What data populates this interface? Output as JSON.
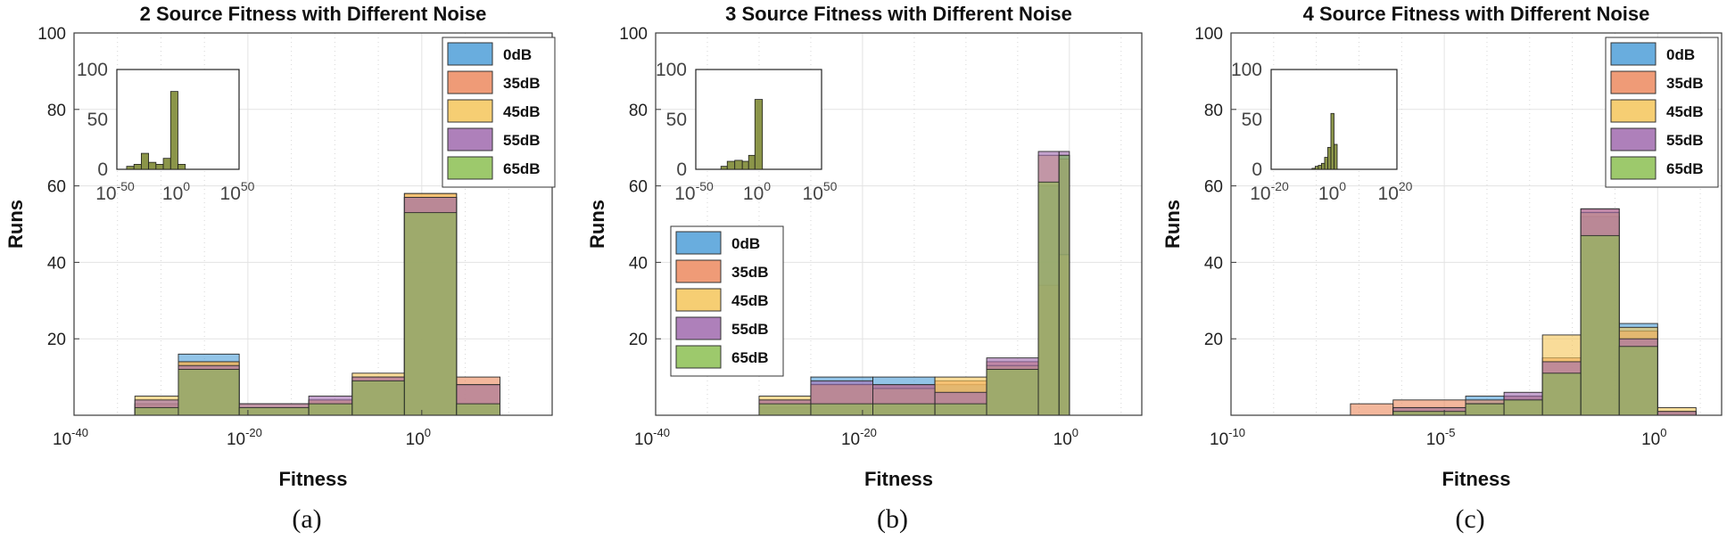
{
  "figure": {
    "series_names": [
      "0dB",
      "35dB",
      "45dB",
      "55dB",
      "65dB"
    ],
    "series_colors": [
      "#4f9fd8",
      "#ec8a5f",
      "#f5c65a",
      "#a06aae",
      "#8cbf52"
    ]
  },
  "chart_data": [
    {
      "type": "histogram",
      "title": "2 Source Fitness with Different Noise",
      "xlabel": "Fitness",
      "ylabel": "Runs",
      "caption": "(a)",
      "xscale": "log10",
      "xlim_exp": [
        -40,
        15
      ],
      "ylim": [
        0,
        100
      ],
      "y_ticks": [
        20,
        40,
        60,
        80,
        100
      ],
      "x_ticks": [
        {
          "base": "10",
          "exp": "-40",
          "v": -40
        },
        {
          "base": "10",
          "exp": "-20",
          "v": -20
        },
        {
          "base": "10",
          "exp": "0",
          "v": 0
        }
      ],
      "legend_position": "top-right",
      "bin_edges_exp": [
        -33,
        -28,
        -21,
        -13,
        -8,
        -2,
        4,
        9
      ],
      "series": [
        {
          "name": "0dB",
          "values": [
            3,
            16,
            2,
            3,
            9,
            57,
            3
          ]
        },
        {
          "name": "35dB",
          "values": [
            3,
            14,
            2,
            4,
            10,
            58,
            10
          ]
        },
        {
          "name": "45dB",
          "values": [
            5,
            14,
            3,
            4,
            11,
            58,
            8
          ]
        },
        {
          "name": "55dB",
          "values": [
            4,
            13,
            3,
            5,
            10,
            57,
            8
          ]
        },
        {
          "name": "65dB",
          "values": [
            2,
            12,
            2,
            3,
            9,
            53,
            3
          ]
        }
      ],
      "inset": {
        "xlim_exp": [
          -50,
          50
        ],
        "ylim": [
          0,
          100
        ],
        "x_ticks": [
          {
            "base": "10",
            "exp": "-50",
            "v": -50
          },
          {
            "base": "10",
            "exp": "0",
            "v": 0
          },
          {
            "base": "10",
            "exp": "50",
            "v": 50
          }
        ],
        "y_ticks": [
          0,
          50,
          100
        ],
        "bin_edges_exp": [
          -42,
          -36,
          -30,
          -24,
          -18,
          -12,
          -6,
          0,
          6
        ],
        "values": [
          3,
          5,
          16,
          7,
          5,
          11,
          78,
          5
        ]
      }
    },
    {
      "type": "histogram",
      "title": "3 Source Fitness with Different Noise",
      "xlabel": "Fitness",
      "ylabel": "Runs",
      "caption": "(b)",
      "xscale": "log10",
      "xlim_exp": [
        -40,
        7
      ],
      "ylim": [
        0,
        100
      ],
      "y_ticks": [
        20,
        40,
        60,
        80,
        100
      ],
      "x_ticks": [
        {
          "base": "10",
          "exp": "-40",
          "v": -40
        },
        {
          "base": "10",
          "exp": "-20",
          "v": -20
        },
        {
          "base": "10",
          "exp": "0",
          "v": 0
        }
      ],
      "legend_position": "middle-left",
      "bin_edges_exp": [
        -30,
        -25,
        -19,
        -13,
        -8,
        -3,
        -1,
        0
      ],
      "series": [
        {
          "name": "0dB",
          "values": [
            2,
            10,
            10,
            8,
            13,
            60,
            68
          ]
        },
        {
          "name": "35dB",
          "values": [
            4,
            8,
            8,
            9,
            14,
            34,
            67
          ]
        },
        {
          "name": "45dB",
          "values": [
            5,
            8,
            7,
            10,
            13,
            68,
            42
          ]
        },
        {
          "name": "55dB",
          "values": [
            4,
            9,
            8,
            6,
            15,
            69,
            69
          ]
        },
        {
          "name": "65dB",
          "values": [
            3,
            3,
            3,
            3,
            12,
            61,
            68
          ]
        }
      ],
      "inset": {
        "xlim_exp": [
          -50,
          50
        ],
        "ylim": [
          0,
          100
        ],
        "x_ticks": [
          {
            "base": "10",
            "exp": "-50",
            "v": -50
          },
          {
            "base": "10",
            "exp": "0",
            "v": 0
          },
          {
            "base": "10",
            "exp": "50",
            "v": 50
          }
        ],
        "y_ticks": [
          0,
          50,
          100
        ],
        "bin_edges_exp": [
          -30,
          -25,
          -19,
          -13,
          -8,
          -3,
          3
        ],
        "values": [
          3,
          8,
          9,
          8,
          14,
          70
        ]
      }
    },
    {
      "type": "histogram",
      "title": "4 Source Fitness with Different Noise",
      "xlabel": "Fitness",
      "ylabel": "Runs",
      "caption": "(c)",
      "xscale": "log10",
      "xlim_exp": [
        -10,
        1.5
      ],
      "ylim": [
        0,
        100
      ],
      "y_ticks": [
        20,
        40,
        60,
        80,
        100
      ],
      "x_ticks": [
        {
          "base": "10",
          "exp": "-10",
          "v": -10
        },
        {
          "base": "10",
          "exp": "-5",
          "v": -5
        },
        {
          "base": "10",
          "exp": "0",
          "v": 0
        }
      ],
      "legend_position": "top-right",
      "bin_edges_exp": [
        -7.2,
        -6.2,
        -4.5,
        -3.6,
        -2.7,
        -1.8,
        -0.9,
        0,
        0.9
      ],
      "series": [
        {
          "name": "0dB",
          "values": [
            0,
            2,
            5,
            5,
            11,
            52,
            24,
            1
          ]
        },
        {
          "name": "35dB",
          "values": [
            3,
            4,
            4,
            5,
            15,
            54,
            22,
            1
          ]
        },
        {
          "name": "45dB",
          "values": [
            0,
            2,
            3,
            4,
            21,
            53,
            23,
            2
          ]
        },
        {
          "name": "55dB",
          "values": [
            0,
            2,
            3,
            6,
            14,
            54,
            20,
            1
          ]
        },
        {
          "name": "65dB",
          "values": [
            0,
            1,
            3,
            4,
            11,
            47,
            18,
            0
          ]
        }
      ],
      "inset": {
        "xlim_exp": [
          -20,
          20
        ],
        "ylim": [
          0,
          100
        ],
        "x_ticks": [
          {
            "base": "10",
            "exp": "-20",
            "v": -20
          },
          {
            "base": "10",
            "exp": "0",
            "v": 0
          },
          {
            "base": "10",
            "exp": "20",
            "v": 20
          }
        ],
        "y_ticks": [
          0,
          50,
          100
        ],
        "bin_edges_exp": [
          -7,
          -6,
          -5,
          -4,
          -3,
          -2,
          -1,
          0,
          1
        ],
        "values": [
          1,
          3,
          4,
          6,
          12,
          22,
          56,
          25
        ]
      }
    }
  ]
}
